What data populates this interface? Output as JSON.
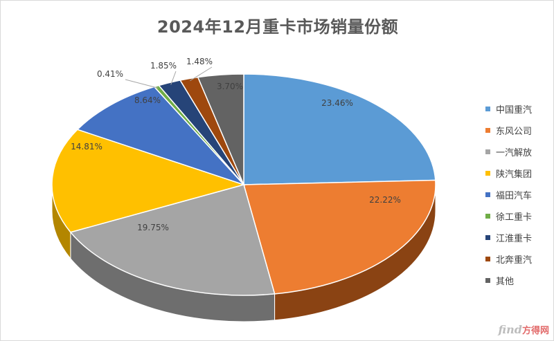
{
  "chart_data": {
    "type": "pie",
    "title": "2024年12月重卡市场销量份额",
    "categories": [
      "中国重汽",
      "东风公司",
      "一汽解放",
      "陕汽集团",
      "福田汽车",
      "徐工重卡",
      "江淮重卡",
      "北奔重汽",
      "其他"
    ],
    "values": [
      23.46,
      22.22,
      19.75,
      14.81,
      8.64,
      0.41,
      1.85,
      1.48,
      3.7
    ],
    "labels": [
      "23.46%",
      "22.22%",
      "19.75%",
      "14.81%",
      "8.64%",
      "0.41%",
      "1.85%",
      "1.48%",
      "3.70%"
    ],
    "unit": "%",
    "legend_position": "right",
    "style": "3d",
    "colors": [
      "#5b9bd5",
      "#ed7d31",
      "#a5a5a5",
      "#ffc000",
      "#4472c4",
      "#70ad47",
      "#264478",
      "#9e480e",
      "#636363"
    ],
    "side_colors": [
      "#3e6e99",
      "#8a4313",
      "#6e6e6e",
      "#b38600",
      "#2e5090",
      "#4e7a31",
      "#1a2f55",
      "#5e2a07",
      "#404040"
    ]
  },
  "watermark": {
    "part1": "find",
    "part2": "方得网"
  }
}
